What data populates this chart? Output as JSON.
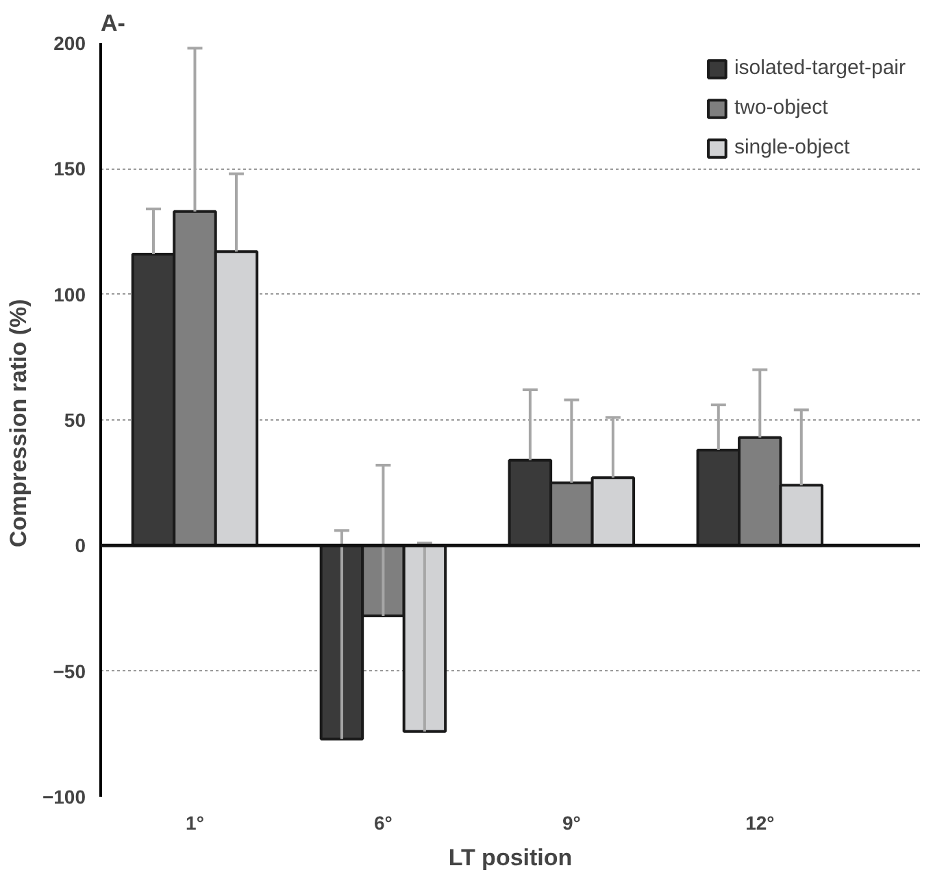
{
  "chart_data": {
    "type": "bar",
    "title": "A-",
    "xlabel": "LT position",
    "ylabel": "Compression ratio  (%)",
    "categories": [
      "1°",
      "6°",
      "9°",
      "12°"
    ],
    "series": [
      {
        "name": "isolated-target-pair",
        "color": "#3a3a3a",
        "values": [
          116,
          -77,
          34,
          38
        ],
        "errors": [
          [
            116,
            134
          ],
          [
            -77,
            6
          ],
          [
            34,
            62
          ],
          [
            38,
            56
          ]
        ]
      },
      {
        "name": "two-object",
        "color": "#7f7f7f",
        "values": [
          133,
          -28,
          25,
          43
        ],
        "errors": [
          [
            133,
            198
          ],
          [
            -28,
            32
          ],
          [
            25,
            58
          ],
          [
            43,
            70
          ]
        ]
      },
      {
        "name": "single-object",
        "color": "#d1d2d4",
        "values": [
          117,
          -74,
          27,
          24
        ],
        "errors": [
          [
            117,
            148
          ],
          [
            -74,
            1
          ],
          [
            27,
            51
          ],
          [
            24,
            54
          ]
        ]
      }
    ],
    "ylim": [
      -100,
      200
    ],
    "yticks": [
      -100,
      -50,
      0,
      50,
      100,
      150,
      200
    ],
    "grid": "y",
    "legend": "top right"
  }
}
